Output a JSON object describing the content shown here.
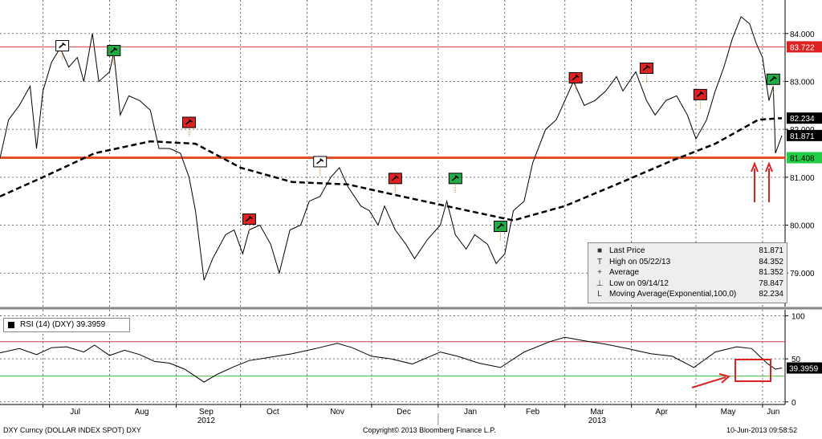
{
  "chart_data": [
    {
      "type": "line",
      "panel": "price",
      "ylim": [
        78.3,
        84.7
      ],
      "yticks": [
        "84.000",
        "83.000",
        "82.000",
        "81.000",
        "80.000",
        "79.000"
      ],
      "ytick_values": [
        84,
        83,
        82,
        81,
        80,
        79
      ],
      "x_axis_months": [
        "Jul",
        "Aug",
        "Sep",
        "Oct",
        "Nov",
        "Dec",
        "Jan",
        "Feb",
        "Mar",
        "Apr",
        "May",
        "Jun"
      ],
      "x_axis_years": [
        "2012",
        "2013"
      ],
      "x_range": [
        "2012-06-11",
        "2013-06-10"
      ],
      "series": [
        {
          "name": "Last Price",
          "color": "#000000",
          "style": "solid",
          "points": [
            [
              "2012-06-11",
              81.4
            ],
            [
              "2012-06-15",
              82.2
            ],
            [
              "2012-06-20",
              82.5
            ],
            [
              "2012-06-25",
              82.9
            ],
            [
              "2012-06-28",
              81.6
            ],
            [
              "2012-07-01",
              82.8
            ],
            [
              "2012-07-05",
              83.4
            ],
            [
              "2012-07-09",
              83.7
            ],
            [
              "2012-07-13",
              83.3
            ],
            [
              "2012-07-17",
              83.5
            ],
            [
              "2012-07-20",
              83.0
            ],
            [
              "2012-07-24",
              84.0
            ],
            [
              "2012-07-27",
              83.0
            ],
            [
              "2012-08-01",
              83.2
            ],
            [
              "2012-08-03",
              83.6
            ],
            [
              "2012-08-06",
              82.3
            ],
            [
              "2012-08-10",
              82.7
            ],
            [
              "2012-08-15",
              82.6
            ],
            [
              "2012-08-20",
              82.4
            ],
            [
              "2012-08-24",
              81.6
            ],
            [
              "2012-08-29",
              81.6
            ],
            [
              "2012-09-03",
              81.5
            ],
            [
              "2012-09-07",
              81.0
            ],
            [
              "2012-09-10",
              80.3
            ],
            [
              "2012-09-14",
              78.85
            ],
            [
              "2012-09-18",
              79.3
            ],
            [
              "2012-09-24",
              79.8
            ],
            [
              "2012-09-28",
              79.9
            ],
            [
              "2012-10-02",
              79.4
            ],
            [
              "2012-10-05",
              79.9
            ],
            [
              "2012-10-10",
              80.0
            ],
            [
              "2012-10-15",
              79.6
            ],
            [
              "2012-10-19",
              79.0
            ],
            [
              "2012-10-24",
              79.9
            ],
            [
              "2012-10-29",
              80.0
            ],
            [
              "2012-11-02",
              80.5
            ],
            [
              "2012-11-07",
              80.6
            ],
            [
              "2012-11-12",
              81.0
            ],
            [
              "2012-11-16",
              81.2
            ],
            [
              "2012-11-20",
              80.8
            ],
            [
              "2012-11-26",
              80.4
            ],
            [
              "2012-11-30",
              80.3
            ],
            [
              "2012-12-04",
              80.0
            ],
            [
              "2012-12-07",
              80.4
            ],
            [
              "2012-12-12",
              79.9
            ],
            [
              "2012-12-17",
              79.6
            ],
            [
              "2012-12-21",
              79.3
            ],
            [
              "2012-12-27",
              79.7
            ],
            [
              "2013-01-02",
              80.0
            ],
            [
              "2013-01-05",
              80.5
            ],
            [
              "2013-01-09",
              79.8
            ],
            [
              "2013-01-14",
              79.5
            ],
            [
              "2013-01-18",
              79.8
            ],
            [
              "2013-01-24",
              79.6
            ],
            [
              "2013-01-28",
              79.2
            ],
            [
              "2013-02-01",
              79.4
            ],
            [
              "2013-02-05",
              80.3
            ],
            [
              "2013-02-10",
              80.5
            ],
            [
              "2013-02-14",
              81.3
            ],
            [
              "2013-02-20",
              82.0
            ],
            [
              "2013-02-25",
              82.2
            ],
            [
              "2013-03-01",
              82.6
            ],
            [
              "2013-03-05",
              83.0
            ],
            [
              "2013-03-10",
              82.5
            ],
            [
              "2013-03-15",
              82.6
            ],
            [
              "2013-03-20",
              82.8
            ],
            [
              "2013-03-25",
              83.1
            ],
            [
              "2013-03-28",
              82.8
            ],
            [
              "2013-04-03",
              83.2
            ],
            [
              "2013-04-08",
              82.6
            ],
            [
              "2013-04-12",
              82.3
            ],
            [
              "2013-04-17",
              82.6
            ],
            [
              "2013-04-22",
              82.7
            ],
            [
              "2013-04-27",
              82.3
            ],
            [
              "2013-05-01",
              81.8
            ],
            [
              "2013-05-06",
              82.2
            ],
            [
              "2013-05-10",
              82.8
            ],
            [
              "2013-05-14",
              83.3
            ],
            [
              "2013-05-18",
              83.9
            ],
            [
              "2013-05-22",
              84.352
            ],
            [
              "2013-05-26",
              84.2
            ],
            [
              "2013-05-29",
              83.8
            ],
            [
              "2013-06-01",
              83.5
            ],
            [
              "2013-06-04",
              82.6
            ],
            [
              "2013-06-06",
              82.9
            ],
            [
              "2013-06-07",
              81.5
            ],
            [
              "2013-06-10",
              81.871
            ]
          ]
        },
        {
          "name": "Moving Average(Exponential,100,0)",
          "color": "#000000",
          "style": "dashed",
          "points": [
            [
              "2012-06-11",
              80.6
            ],
            [
              "2012-07-01",
              81.0
            ],
            [
              "2012-07-25",
              81.5
            ],
            [
              "2012-08-20",
              81.75
            ],
            [
              "2012-09-10",
              81.7
            ],
            [
              "2012-10-01",
              81.2
            ],
            [
              "2012-10-25",
              80.9
            ],
            [
              "2012-11-20",
              80.85
            ],
            [
              "2012-12-15",
              80.6
            ],
            [
              "2013-01-15",
              80.3
            ],
            [
              "2013-02-05",
              80.1
            ],
            [
              "2013-03-01",
              80.4
            ],
            [
              "2013-03-25",
              80.85
            ],
            [
              "2013-04-20",
              81.35
            ],
            [
              "2013-05-10",
              81.7
            ],
            [
              "2013-05-30",
              82.2
            ],
            [
              "2013-06-10",
              82.234
            ]
          ]
        }
      ],
      "hlines": [
        {
          "value": 83.722,
          "label": "83.722",
          "color": "#d44040"
        },
        {
          "value": 81.408,
          "label": "81.408",
          "color": "#e05020"
        }
      ],
      "right_labels": [
        {
          "value": 82.234,
          "label": "82.234",
          "bg": "#000000",
          "fg": "#ffffff"
        },
        {
          "value": 81.871,
          "label": "81.871",
          "bg": "#000000",
          "fg": "#ffffff"
        },
        {
          "value": 82.0,
          "label": "82.000",
          "bg": "#ffffff",
          "fg": "#000000"
        }
      ],
      "flags": [
        {
          "date": "2012-07-10",
          "value": 83.72,
          "color": "#ffffff"
        },
        {
          "date": "2012-08-03",
          "value": 83.62,
          "color": "#22aa44"
        },
        {
          "date": "2012-09-07",
          "value": 82.12,
          "color": "#dd2222"
        },
        {
          "date": "2012-10-05",
          "value": 80.1,
          "color": "#dd2222"
        },
        {
          "date": "2012-11-07",
          "value": 81.3,
          "color": "#ffffff"
        },
        {
          "date": "2012-12-12",
          "value": 80.95,
          "color": "#dd2222"
        },
        {
          "date": "2013-01-09",
          "value": 80.95,
          "color": "#22aa44"
        },
        {
          "date": "2013-01-30",
          "value": 79.95,
          "color": "#22aa44"
        },
        {
          "date": "2013-03-06",
          "value": 83.05,
          "color": "#dd2222"
        },
        {
          "date": "2013-04-08",
          "value": 83.25,
          "color": "#dd2222"
        },
        {
          "date": "2013-05-03",
          "value": 82.7,
          "color": "#dd2222"
        },
        {
          "date": "2013-06-06",
          "value": 83.02,
          "color": "#22aa44"
        }
      ],
      "legend": {
        "placement": "bottom-right",
        "items": [
          {
            "symbol": "■",
            "label": "Last Price",
            "value": "81.871"
          },
          {
            "symbol": "T",
            "label": "High on 05/22/13",
            "value": "84.352"
          },
          {
            "symbol": "+",
            "label": "Average",
            "value": "81.352"
          },
          {
            "symbol": "⊥",
            "label": "Low on 09/14/12",
            "value": "78.847"
          },
          {
            "symbol": "L",
            "label": "Moving Average(Exponential,100,0)",
            "value": "82.234"
          }
        ]
      }
    },
    {
      "type": "line",
      "panel": "rsi",
      "ylim": [
        -3,
        107
      ],
      "yticks": [
        "100",
        "50",
        "0"
      ],
      "ytick_values": [
        100,
        50,
        0
      ],
      "overbought": 70,
      "oversold": 30,
      "overbought_color": "#d44040",
      "oversold_color": "#44bb44",
      "current_label": "39.3959",
      "legend": "RSI (14) (DXY) 39.3959",
      "series": [
        {
          "name": "RSI (14) (DXY)",
          "color": "#000000",
          "points": [
            [
              "2012-06-11",
              57
            ],
            [
              "2012-06-20",
              62
            ],
            [
              "2012-06-28",
              55
            ],
            [
              "2012-07-05",
              63
            ],
            [
              "2012-07-12",
              64
            ],
            [
              "2012-07-20",
              58
            ],
            [
              "2012-07-25",
              66
            ],
            [
              "2012-08-01",
              54
            ],
            [
              "2012-08-08",
              60
            ],
            [
              "2012-08-15",
              55
            ],
            [
              "2012-08-22",
              47
            ],
            [
              "2012-08-29",
              45
            ],
            [
              "2012-09-05",
              38
            ],
            [
              "2012-09-14",
              23
            ],
            [
              "2012-09-20",
              32
            ],
            [
              "2012-09-28",
              41
            ],
            [
              "2012-10-05",
              48
            ],
            [
              "2012-10-15",
              52
            ],
            [
              "2012-10-25",
              56
            ],
            [
              "2012-11-05",
              62
            ],
            [
              "2012-11-15",
              68
            ],
            [
              "2012-11-22",
              63
            ],
            [
              "2012-12-01",
              53
            ],
            [
              "2012-12-10",
              50
            ],
            [
              "2012-12-20",
              44
            ],
            [
              "2013-01-02",
              58
            ],
            [
              "2013-01-10",
              53
            ],
            [
              "2013-01-20",
              45
            ],
            [
              "2013-01-30",
              40
            ],
            [
              "2013-02-10",
              58
            ],
            [
              "2013-02-22",
              70
            ],
            [
              "2013-03-01",
              75
            ],
            [
              "2013-03-10",
              71
            ],
            [
              "2013-03-20",
              67
            ],
            [
              "2013-03-30",
              62
            ],
            [
              "2013-04-10",
              56
            ],
            [
              "2013-04-20",
              53
            ],
            [
              "2013-04-30",
              40
            ],
            [
              "2013-05-10",
              58
            ],
            [
              "2013-05-20",
              64
            ],
            [
              "2013-05-27",
              62
            ],
            [
              "2013-06-03",
              45
            ],
            [
              "2013-06-07",
              38
            ],
            [
              "2013-06-10",
              39.3959
            ]
          ]
        }
      ]
    }
  ],
  "footer": {
    "left": "DXY Curncy (DOLLAR INDEX SPOT) DXY",
    "center": "Copyright© 2013 Bloomberg Finance L.P.",
    "right": "10-Jun-2013 09:58:52"
  }
}
